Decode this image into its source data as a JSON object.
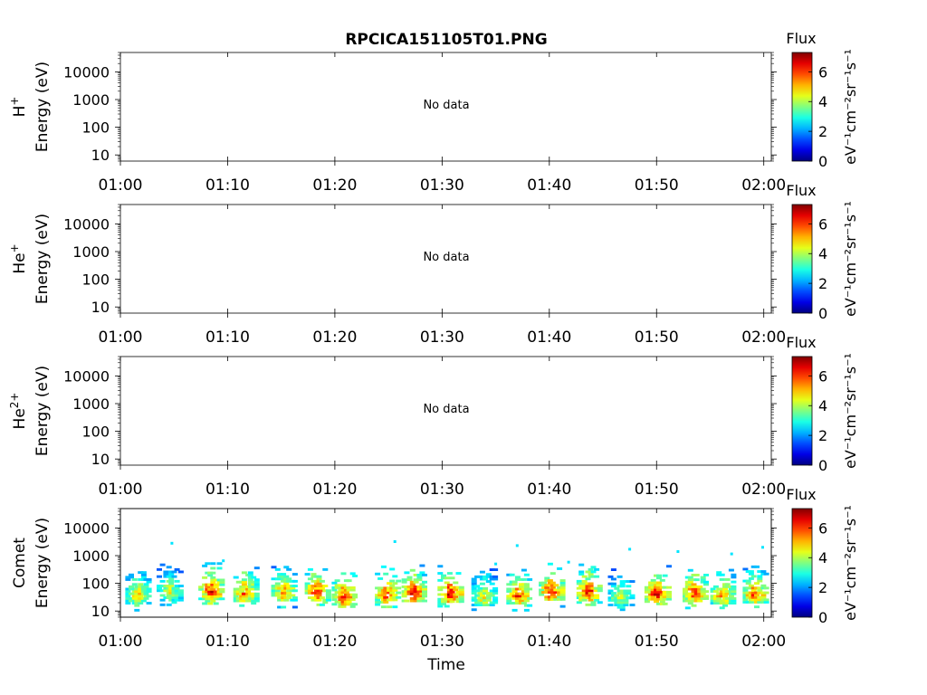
{
  "figure": {
    "title": "RPCICA151105T01.PNG",
    "xlabel": "Time",
    "colorbar": {
      "title": "Flux",
      "label": "eV⁻¹cm⁻²sr⁻¹s⁻¹",
      "ticks": [
        "0",
        "2",
        "4",
        "6"
      ]
    }
  },
  "chart_data": {
    "type": "heatmap",
    "x_tick_labels": [
      "01:00",
      "01:10",
      "01:20",
      "01:30",
      "01:40",
      "01:50",
      "02:00"
    ],
    "x_range_minutes": [
      0,
      60.7
    ],
    "y_scale": "log",
    "y_range_eV": [
      6,
      50000
    ],
    "y_tick_labels": [
      "10",
      "100",
      "1000",
      "10000"
    ],
    "color_range": [
      0,
      7.3
    ],
    "colormap": "jet",
    "panels": [
      {
        "ylabel_species": "H",
        "ylabel_superscript": "+",
        "ylabel_units": "Energy (eV)",
        "message": "No data",
        "bursts": []
      },
      {
        "ylabel_species": "He",
        "ylabel_superscript": "+",
        "ylabel_units": "Energy (eV)",
        "message": "No data",
        "bursts": []
      },
      {
        "ylabel_species": "He",
        "ylabel_superscript": "2+",
        "ylabel_units": "Energy (eV)",
        "message": "No data",
        "bursts": []
      },
      {
        "ylabel_species": "Comet",
        "ylabel_superscript": "",
        "ylabel_units": "Energy (eV)",
        "message": "",
        "bursts": [
          {
            "t": 1.5,
            "e": 35,
            "peak": 5.2
          },
          {
            "t": 4.4,
            "e": 45,
            "peak": 4.8
          },
          {
            "t": 8.3,
            "e": 50,
            "peak": 6.8
          },
          {
            "t": 11.5,
            "e": 42,
            "peak": 6.2
          },
          {
            "t": 15.1,
            "e": 45,
            "peak": 5.8
          },
          {
            "t": 18.2,
            "e": 45,
            "peak": 6.6
          },
          {
            "t": 20.7,
            "e": 32,
            "peak": 6.8
          },
          {
            "t": 24.7,
            "e": 38,
            "peak": 6.5
          },
          {
            "t": 27.2,
            "e": 42,
            "peak": 6.8
          },
          {
            "t": 30.6,
            "e": 40,
            "peak": 7.0
          },
          {
            "t": 33.7,
            "e": 30,
            "peak": 5.0
          },
          {
            "t": 37.0,
            "e": 35,
            "peak": 6.4
          },
          {
            "t": 40.0,
            "e": 48,
            "peak": 6.8
          },
          {
            "t": 43.5,
            "e": 45,
            "peak": 6.6
          },
          {
            "t": 46.5,
            "e": 30,
            "peak": 4.6
          },
          {
            "t": 49.9,
            "e": 40,
            "peak": 6.9
          },
          {
            "t": 53.4,
            "e": 42,
            "peak": 6.5
          },
          {
            "t": 56.0,
            "e": 35,
            "peak": 6.0
          },
          {
            "t": 59.0,
            "e": 38,
            "peak": 6.2
          }
        ],
        "sparse_points": [
          {
            "t": 4.8,
            "e": 2800
          },
          {
            "t": 9.6,
            "e": 650
          },
          {
            "t": 25.6,
            "e": 3200
          },
          {
            "t": 35.0,
            "e": 500
          },
          {
            "t": 37.0,
            "e": 2300
          },
          {
            "t": 41.8,
            "e": 580
          },
          {
            "t": 47.5,
            "e": 1700
          },
          {
            "t": 52.0,
            "e": 1400
          },
          {
            "t": 57.0,
            "e": 1150
          },
          {
            "t": 59.9,
            "e": 2000
          }
        ]
      }
    ]
  }
}
